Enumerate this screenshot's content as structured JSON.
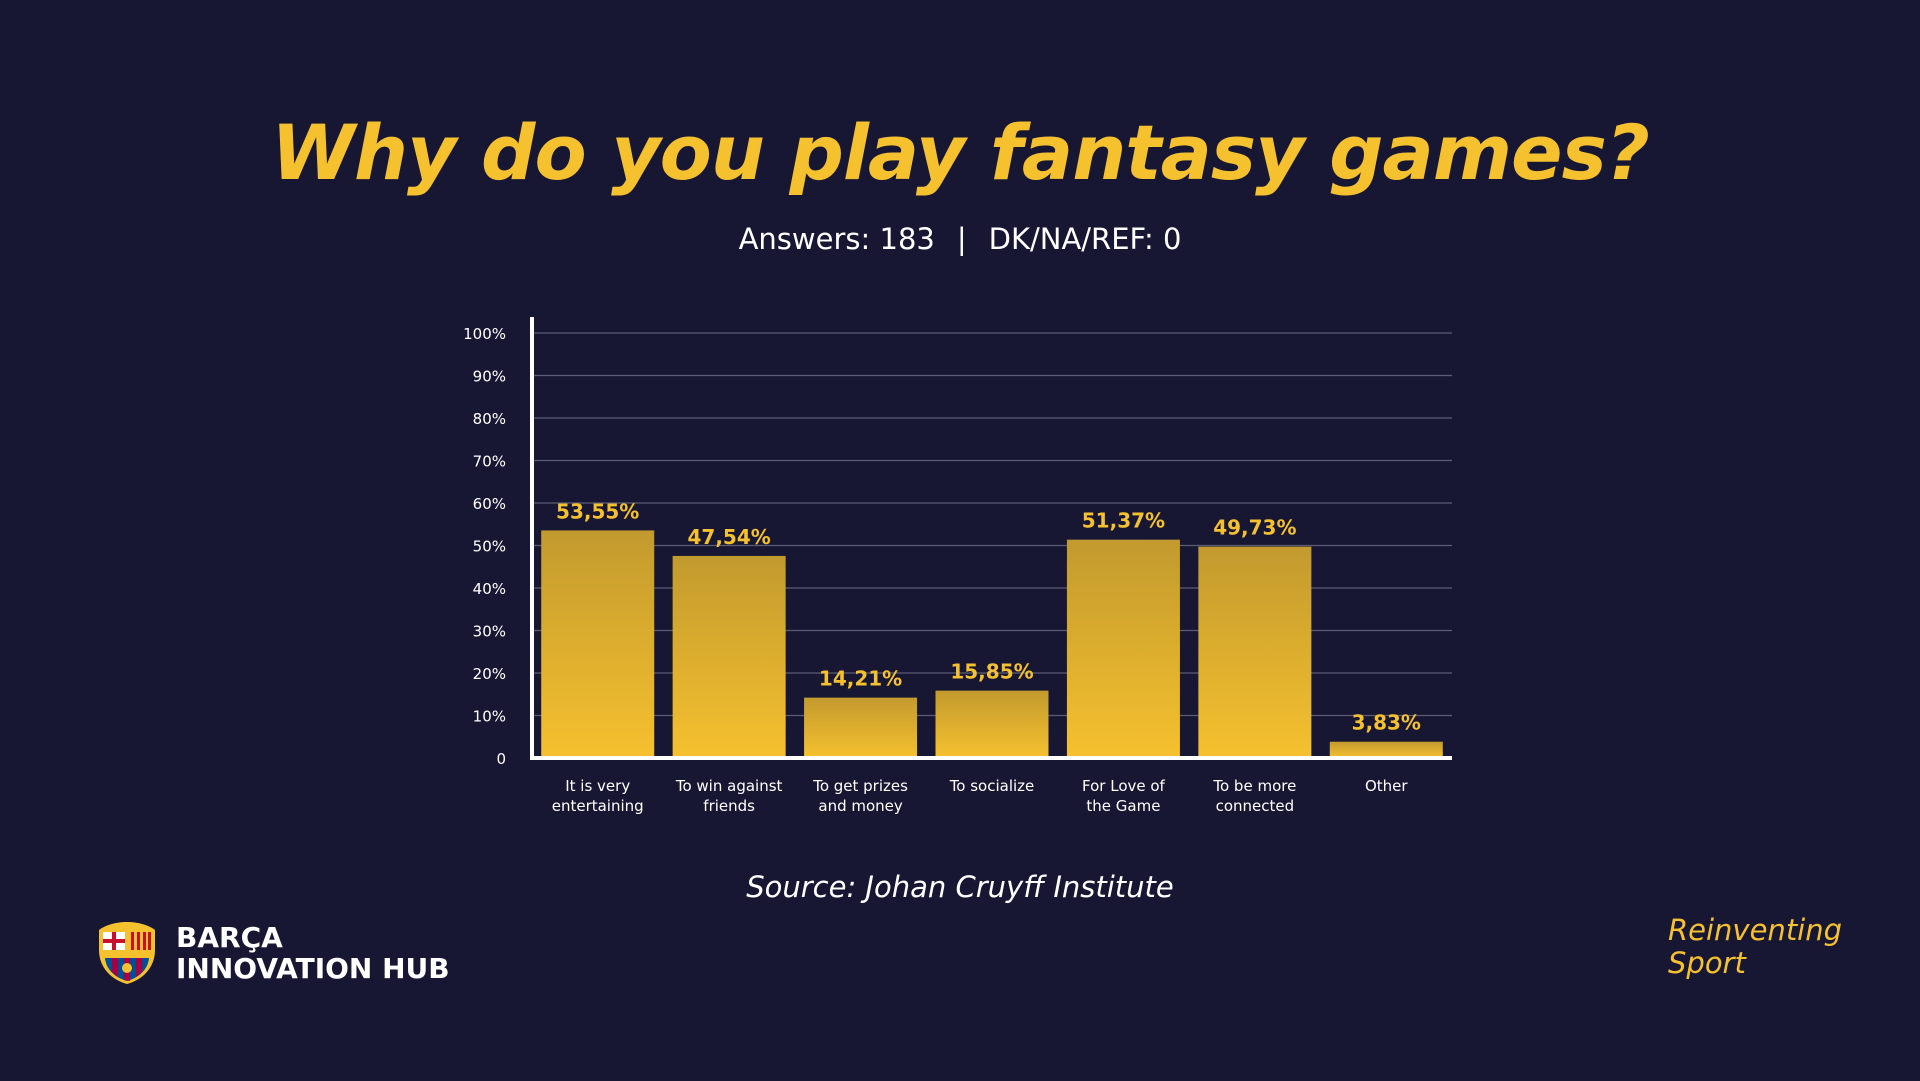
{
  "page": {
    "title": "Why do you play fantasy games?",
    "subtitle_answers": "Answers: 183",
    "subtitle_separator": "|",
    "subtitle_dk": "DK/NA/REF: 0",
    "source": "Source: Johan Cruyff Institute",
    "brand_line1": "BARÇA",
    "brand_line2": "INNOVATION HUB",
    "tagline_line1": "Reinventing",
    "tagline_line2": "Sport"
  },
  "chart_data": {
    "type": "bar",
    "categories": [
      [
        "It is very",
        "entertaining"
      ],
      [
        "To win against",
        "friends"
      ],
      [
        "To get prizes",
        "and money"
      ],
      [
        "To socialize"
      ],
      [
        "For Love of",
        "the Game"
      ],
      [
        "To be more",
        "connected"
      ],
      [
        "Other"
      ]
    ],
    "values": [
      53.55,
      47.54,
      14.21,
      15.85,
      51.37,
      49.73,
      3.83
    ],
    "value_labels": [
      "53,55%",
      "47,54%",
      "14,21%",
      "15,85%",
      "51,37%",
      "49,73%",
      "3,83%"
    ],
    "ylim": [
      0,
      100
    ],
    "yticks": [
      0,
      10,
      20,
      30,
      40,
      50,
      60,
      70,
      80,
      90,
      100
    ],
    "ytick_labels": [
      "0",
      "10%",
      "20%",
      "30%",
      "40%",
      "50%",
      "60%",
      "70%",
      "80%",
      "90%",
      "100%"
    ],
    "grid": true,
    "bar_color_top": "#c29a2e",
    "bar_color_bottom": "#f6c12f",
    "label_color": "#f6c12f"
  },
  "colors": {
    "background": "#181733",
    "accent": "#f6c12f",
    "text": "#ffffff"
  }
}
